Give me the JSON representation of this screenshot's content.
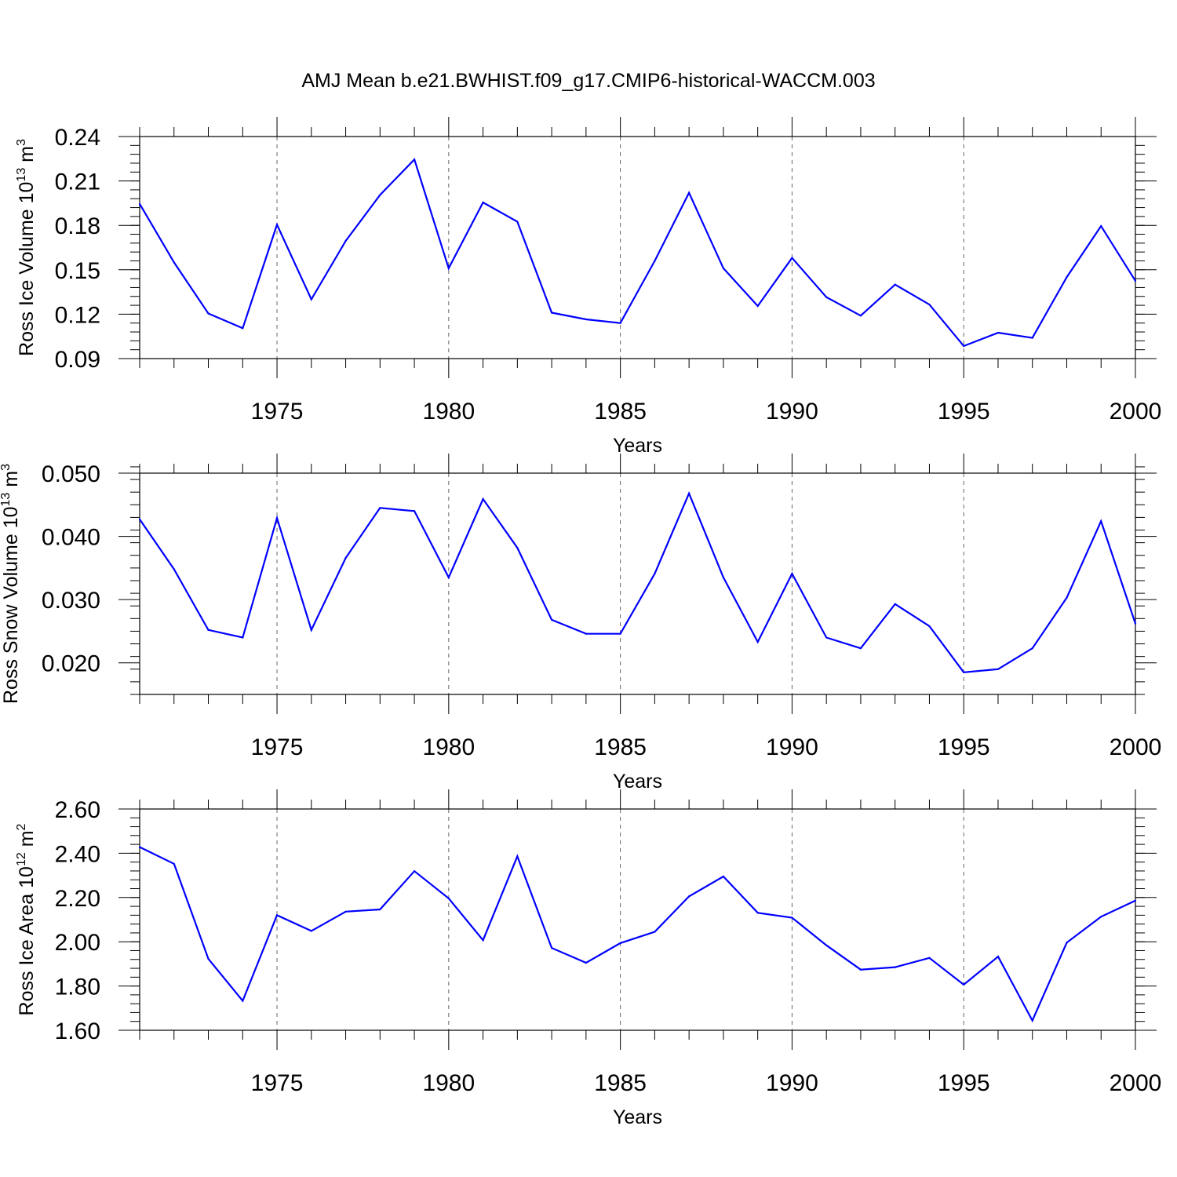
{
  "title": "AMJ Mean b.e21.BWHIST.f09_g17.CMIP6-historical-WACCM.003",
  "colors": {
    "line": "#0000ff",
    "axis": "#000000",
    "grid": "#666666"
  },
  "chart_data": [
    {
      "type": "line",
      "ylabel": {
        "text": "Ross Ice Volume 10",
        "sup": "13",
        "unit": " m",
        "unit_sup": "3"
      },
      "xlabel": "Years",
      "xlim": [
        1971,
        2000
      ],
      "ylim": [
        0.09,
        0.24
      ],
      "x_ticks": [
        "1975",
        "1980",
        "1985",
        "1990",
        "1995",
        "2000"
      ],
      "y_ticks": [
        "0.09",
        "0.12",
        "0.15",
        "0.18",
        "0.21",
        "0.24"
      ],
      "y_minor_step": 0.006,
      "grid": "vertical dashed at major x ticks",
      "series": [
        {
          "name": "Ross Ice Volume",
          "x": [
            1971,
            1972,
            1973,
            1974,
            1975,
            1976,
            1977,
            1978,
            1979,
            1980,
            1981,
            1982,
            1983,
            1984,
            1985,
            1986,
            1987,
            1988,
            1989,
            1990,
            1991,
            1992,
            1993,
            1994,
            1995,
            1996,
            1997,
            1998,
            1999,
            2000
          ],
          "values": [
            0.1945,
            0.155,
            0.1205,
            0.1105,
            0.1805,
            0.13,
            0.1695,
            0.2005,
            0.2245,
            0.151,
            0.1955,
            0.1825,
            0.121,
            0.1165,
            0.114,
            0.156,
            0.202,
            0.151,
            0.1255,
            0.158,
            0.1315,
            0.119,
            0.14,
            0.1265,
            0.0985,
            0.1075,
            0.104,
            0.145,
            0.1795,
            0.1425
          ]
        }
      ]
    },
    {
      "type": "line",
      "ylabel": {
        "text": "Ross Snow Volume 10",
        "sup": "13",
        "unit": " m",
        "unit_sup": "3"
      },
      "xlabel": "Years",
      "xlim": [
        1971,
        2000
      ],
      "ylim": [
        0.015,
        0.05
      ],
      "x_ticks": [
        "1975",
        "1980",
        "1985",
        "1990",
        "1995",
        "2000"
      ],
      "y_ticks": [
        "0.020",
        "0.030",
        "0.040",
        "0.050"
      ],
      "y_minor_step": 0.002,
      "grid": "vertical dashed at major x ticks",
      "series": [
        {
          "name": "Ross Snow Volume",
          "x": [
            1971,
            1972,
            1973,
            1974,
            1975,
            1976,
            1977,
            1978,
            1979,
            1980,
            1981,
            1982,
            1983,
            1984,
            1985,
            1986,
            1987,
            1988,
            1989,
            1990,
            1991,
            1992,
            1993,
            1994,
            1995,
            1996,
            1997,
            1998,
            1999,
            2000
          ],
          "values": [
            0.0427,
            0.0348,
            0.0252,
            0.024,
            0.0429,
            0.0252,
            0.0366,
            0.0445,
            0.044,
            0.0335,
            0.0459,
            0.0382,
            0.0268,
            0.0246,
            0.0246,
            0.0341,
            0.0468,
            0.0335,
            0.0233,
            0.0341,
            0.024,
            0.0223,
            0.0293,
            0.0258,
            0.0185,
            0.019,
            0.0223,
            0.0303,
            0.0424,
            0.0262
          ]
        }
      ]
    },
    {
      "type": "line",
      "ylabel": {
        "text": "Ross Ice Area 10",
        "sup": "12",
        "unit": " m",
        "unit_sup": "2"
      },
      "xlabel": "Years",
      "xlim": [
        1971,
        2000
      ],
      "ylim": [
        1.6,
        2.6
      ],
      "x_ticks": [
        "1975",
        "1980",
        "1985",
        "1990",
        "1995",
        "2000"
      ],
      "y_ticks": [
        "1.60",
        "1.80",
        "2.00",
        "2.20",
        "2.40",
        "2.60"
      ],
      "y_minor_step": 0.04,
      "grid": "vertical dashed at major x ticks",
      "series": [
        {
          "name": "Ross Ice Area",
          "x": [
            1971,
            1972,
            1973,
            1974,
            1975,
            1976,
            1977,
            1978,
            1979,
            1980,
            1981,
            1982,
            1983,
            1984,
            1985,
            1986,
            1987,
            1988,
            1989,
            1990,
            1991,
            1992,
            1993,
            1994,
            1995,
            1996,
            1997,
            1998,
            1999,
            2000
          ],
          "values": [
            2.428,
            2.352,
            1.923,
            1.733,
            2.12,
            2.049,
            2.136,
            2.146,
            2.319,
            2.196,
            2.007,
            2.386,
            1.972,
            1.905,
            1.994,
            2.045,
            2.205,
            2.295,
            2.131,
            2.109,
            1.984,
            1.874,
            1.885,
            1.927,
            1.806,
            1.933,
            1.644,
            1.996,
            2.113,
            2.186
          ]
        }
      ]
    }
  ]
}
